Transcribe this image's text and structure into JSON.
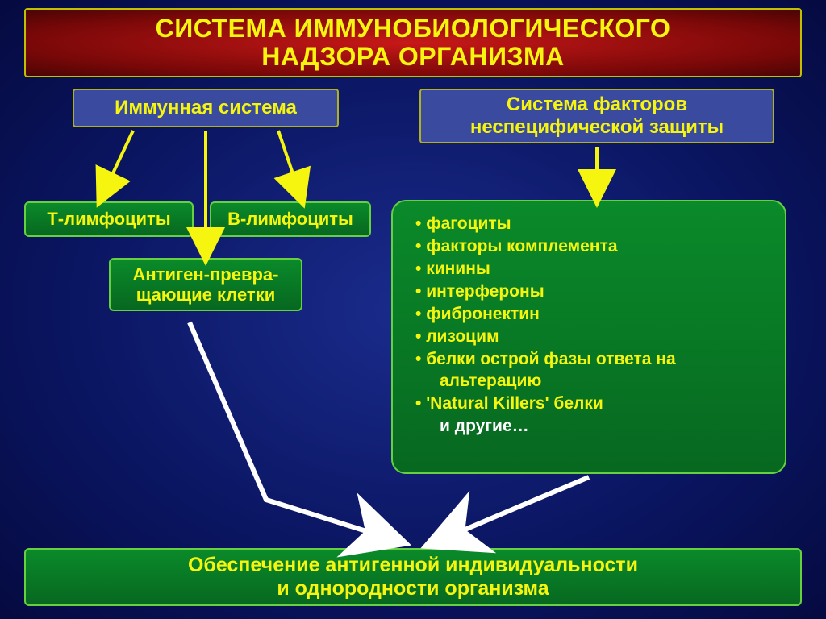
{
  "type": "flowchart",
  "background_gradient": [
    "#1a2b8c",
    "#0a1560",
    "#050a40"
  ],
  "title": {
    "line1": "СИСТЕМА ИММУНОБИОЛОГИЧЕСКОГО",
    "line2": "НАДЗОРА ОРГАНИЗМА",
    "bg_gradient": [
      "#c81818",
      "#7a0808",
      "#4a0404"
    ],
    "border_color": "#c0c000",
    "text_color": "#f5f510",
    "fontsize": 32
  },
  "branches": {
    "immune_system": {
      "label": "Иммунная система",
      "bg_color": "#3a4a9e",
      "border_color": "#b0b020",
      "text_color": "#f5f510",
      "fontsize": 24
    },
    "nonspecific": {
      "line1": "Система факторов",
      "line2": "неспецифической защиты",
      "bg_color": "#3a4a9e",
      "border_color": "#b0b020",
      "text_color": "#f5f510",
      "fontsize": 24
    }
  },
  "green_boxes": {
    "tlymph": "Т-лимфоциты",
    "blymph": "В-лимфоциты",
    "antigen_line1": "Антиген-превра-",
    "antigen_line2": "щающие клетки",
    "bg_gradient": [
      "#0a8a2a",
      "#076820"
    ],
    "border_color": "#66d040",
    "text_color": "#f5f510",
    "fontsize": 22
  },
  "factors": {
    "items": [
      "фагоциты",
      "факторы комплемента",
      "кинины",
      "интерфероны",
      "фибронектин",
      "лизоцим",
      "белки острой фазы ответа на",
      "   альтерацию",
      "'Natural Killers' белки"
    ],
    "other": "и другие…",
    "fontsize": 21
  },
  "bottom": {
    "line1": "Обеспечение антигенной индивидуальности",
    "line2": "и однородности организма",
    "fontsize": 25
  },
  "arrows": {
    "stroke": "#f5f510",
    "stroke_width": 4,
    "head_fill": "#f5f510"
  },
  "white_arrows": {
    "stroke": "#ffffff",
    "stroke_width": 5
  }
}
